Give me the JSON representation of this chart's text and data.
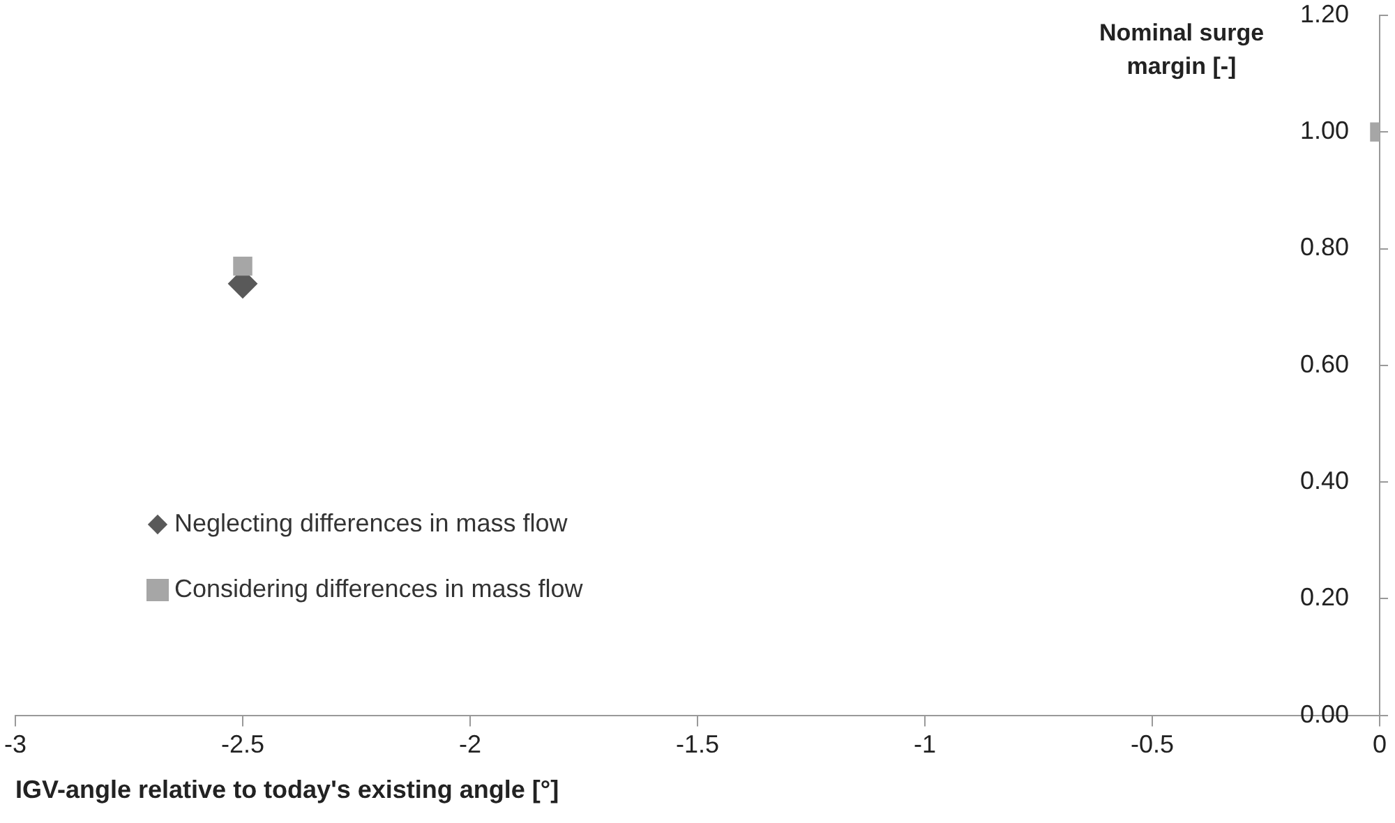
{
  "chart_data": {
    "type": "scatter",
    "xlabel": "IGV-angle relative to today's existing angle [°]",
    "ylabel": "Nominal surge margin [-]",
    "x": [
      -2.5,
      0
    ],
    "series": [
      {
        "name": "Neglecting differences in mass flow",
        "color": "#595959",
        "marker": "diamond",
        "values": [
          0.74,
          null
        ]
      },
      {
        "name": "Considering differences in mass flow",
        "color": "#a6a6a6",
        "marker": "square",
        "values": [
          0.77,
          1.0
        ]
      }
    ],
    "xlim": [
      -3,
      0
    ],
    "xticks": [
      -3,
      -2.5,
      -2,
      -1.5,
      -1,
      -0.5,
      0
    ],
    "ylim": [
      0,
      1.2
    ],
    "yticks": [
      {
        "value": 0,
        "label": "0.00"
      },
      {
        "value": 0.2,
        "label": "0.20"
      },
      {
        "value": 0.4,
        "label": "0.40"
      },
      {
        "value": 0.6,
        "label": "0.60"
      },
      {
        "value": 0.8,
        "label": "0.80"
      },
      {
        "value": 1,
        "label": "1.00"
      },
      {
        "value": 1.2,
        "label": "1.20"
      }
    ],
    "grid": false,
    "legend": "left"
  }
}
